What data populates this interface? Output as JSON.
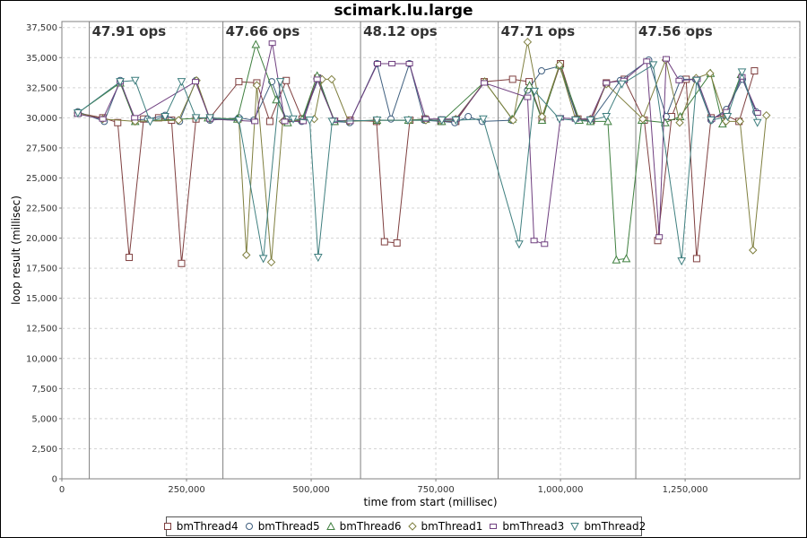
{
  "chart_data": {
    "type": "line",
    "title": "scimark.lu.large",
    "xlabel": "time from start (millisec)",
    "ylabel": "loop result (millisec)",
    "xlim": [
      0,
      1480000
    ],
    "ylim": [
      0,
      38000
    ],
    "xticks": [
      0,
      250000,
      500000,
      750000,
      1000000,
      1250000
    ],
    "xtick_labels": [
      "0",
      "250,000",
      "500,000",
      "750,000",
      "1,000,000",
      "1,250,000"
    ],
    "yticks": [
      0,
      2500,
      5000,
      7500,
      10000,
      12500,
      15000,
      17500,
      20000,
      22500,
      25000,
      27500,
      30000,
      32500,
      35000,
      37500
    ],
    "ytick_labels": [
      "0",
      "2,500",
      "5,000",
      "7,500",
      "10,000",
      "12,500",
      "15,000",
      "17,500",
      "20,000",
      "22,500",
      "25,000",
      "27,500",
      "30,000",
      "32,500",
      "35,000",
      "37,500"
    ],
    "grid": true,
    "legend_position": "bottom",
    "markers": [
      {
        "x": 55000,
        "label": "47.91 ops"
      },
      {
        "x": 323000,
        "label": "47.66 ops"
      },
      {
        "x": 599000,
        "label": "48.12 ops"
      },
      {
        "x": 875000,
        "label": "47.71 ops"
      },
      {
        "x": 1151000,
        "label": "47.56 ops"
      }
    ],
    "series": [
      {
        "name": "bmThread4",
        "color": "#7f3f3f",
        "marker": "square",
        "points": [
          [
            32000,
            30400
          ],
          [
            82000,
            30000
          ],
          [
            112000,
            29600
          ],
          [
            135000,
            18400
          ],
          [
            164000,
            29900
          ],
          [
            194000,
            30000
          ],
          [
            220000,
            29800
          ],
          [
            240000,
            17900
          ],
          [
            269000,
            29900
          ],
          [
            297000,
            30000
          ],
          [
            355000,
            33000
          ],
          [
            391000,
            32900
          ],
          [
            417000,
            29700
          ],
          [
            450000,
            33100
          ],
          [
            482000,
            29900
          ],
          [
            513000,
            33300
          ],
          [
            547000,
            29700
          ],
          [
            578000,
            29800
          ],
          [
            631000,
            29700
          ],
          [
            647000,
            19700
          ],
          [
            672000,
            19600
          ],
          [
            698000,
            29800
          ],
          [
            728000,
            29900
          ],
          [
            760000,
            29700
          ],
          [
            790000,
            29700
          ],
          [
            847000,
            33000
          ],
          [
            904000,
            33200
          ],
          [
            937000,
            33000
          ],
          [
            963000,
            29900
          ],
          [
            1000000,
            34500
          ],
          [
            1035000,
            29900
          ],
          [
            1062000,
            29800
          ],
          [
            1092000,
            32900
          ],
          [
            1128000,
            33200
          ],
          [
            1168000,
            29800
          ],
          [
            1195000,
            19800
          ],
          [
            1223000,
            30100
          ],
          [
            1252000,
            33200
          ],
          [
            1273000,
            18300
          ],
          [
            1302000,
            30000
          ],
          [
            1332000,
            30200
          ],
          [
            1358000,
            29700
          ],
          [
            1389000,
            33900
          ]
        ]
      },
      {
        "name": "bmThread5",
        "color": "#3f5f7f",
        "marker": "circle",
        "points": [
          [
            32000,
            30500
          ],
          [
            85000,
            29700
          ],
          [
            117000,
            33100
          ],
          [
            146000,
            29800
          ],
          [
            172000,
            29900
          ],
          [
            207000,
            30200
          ],
          [
            236000,
            29700
          ],
          [
            269000,
            33100
          ],
          [
            297000,
            29800
          ],
          [
            355000,
            30000
          ],
          [
            385000,
            29800
          ],
          [
            421000,
            33000
          ],
          [
            450000,
            29900
          ],
          [
            481000,
            29700
          ],
          [
            515000,
            33300
          ],
          [
            546000,
            29700
          ],
          [
            577000,
            29600
          ],
          [
            632000,
            34500
          ],
          [
            660000,
            29900
          ],
          [
            697000,
            34500
          ],
          [
            727000,
            29800
          ],
          [
            760000,
            29700
          ],
          [
            788000,
            29600
          ],
          [
            815000,
            30100
          ],
          [
            843000,
            29700
          ],
          [
            902000,
            29800
          ],
          [
            934000,
            32300
          ],
          [
            962000,
            33900
          ],
          [
            998000,
            34300
          ],
          [
            1035000,
            29800
          ],
          [
            1061000,
            29700
          ],
          [
            1120000,
            33100
          ],
          [
            1177000,
            34800
          ],
          [
            1212000,
            30100
          ],
          [
            1241000,
            33200
          ],
          [
            1271000,
            33200
          ],
          [
            1302000,
            29800
          ],
          [
            1333000,
            30700
          ],
          [
            1365000,
            33200
          ],
          [
            1392000,
            30500
          ]
        ]
      },
      {
        "name": "bmThread6",
        "color": "#3f7f3f",
        "marker": "triangle",
        "points": [
          [
            32000,
            30400
          ],
          [
            117000,
            32900
          ],
          [
            147000,
            29700
          ],
          [
            293000,
            30000
          ],
          [
            352000,
            29900
          ],
          [
            389000,
            36100
          ],
          [
            430000,
            31500
          ],
          [
            453000,
            29600
          ],
          [
            482000,
            29900
          ],
          [
            512000,
            33500
          ],
          [
            547000,
            29700
          ],
          [
            632000,
            29800
          ],
          [
            695000,
            29800
          ],
          [
            730000,
            29900
          ],
          [
            762000,
            29700
          ],
          [
            848000,
            33000
          ],
          [
            903000,
            29900
          ],
          [
            938000,
            32700
          ],
          [
            963000,
            29800
          ],
          [
            998000,
            34400
          ],
          [
            1038000,
            29800
          ],
          [
            1060000,
            29700
          ],
          [
            1095000,
            29700
          ],
          [
            1112000,
            18200
          ],
          [
            1132000,
            18300
          ],
          [
            1163000,
            29800
          ],
          [
            1210000,
            29600
          ],
          [
            1240000,
            30100
          ],
          [
            1301000,
            33700
          ],
          [
            1325000,
            29500
          ],
          [
            1362000,
            33600
          ]
        ]
      },
      {
        "name": "bmThread1",
        "color": "#7f7f3f",
        "marker": "diamond",
        "points": [
          [
            32000,
            30400
          ],
          [
            82000,
            29900
          ],
          [
            147000,
            29700
          ],
          [
            234000,
            29800
          ],
          [
            270000,
            33100
          ],
          [
            297000,
            29900
          ],
          [
            355000,
            29800
          ],
          [
            370000,
            18600
          ],
          [
            391000,
            32700
          ],
          [
            420000,
            18000
          ],
          [
            443000,
            29700
          ],
          [
            506000,
            29900
          ],
          [
            522000,
            33200
          ],
          [
            541000,
            33200
          ],
          [
            575000,
            29700
          ],
          [
            632000,
            29800
          ],
          [
            697000,
            29800
          ],
          [
            730000,
            29800
          ],
          [
            760000,
            29800
          ],
          [
            790000,
            29900
          ],
          [
            848000,
            33000
          ],
          [
            905000,
            29800
          ],
          [
            934000,
            36300
          ],
          [
            963000,
            30100
          ],
          [
            998000,
            34400
          ],
          [
            1030000,
            29900
          ],
          [
            1060000,
            29900
          ],
          [
            1092000,
            32800
          ],
          [
            1165000,
            29900
          ],
          [
            1211000,
            34800
          ],
          [
            1239000,
            29600
          ],
          [
            1272000,
            33300
          ],
          [
            1300000,
            33700
          ],
          [
            1332000,
            29700
          ],
          [
            1360000,
            29700
          ],
          [
            1386000,
            19000
          ],
          [
            1413000,
            30200
          ]
        ]
      },
      {
        "name": "bmThread3",
        "color": "#6f3f7f",
        "marker": "rect",
        "points": [
          [
            32000,
            30300
          ],
          [
            82000,
            29900
          ],
          [
            117000,
            33000
          ],
          [
            146000,
            30000
          ],
          [
            268000,
            33000
          ],
          [
            297000,
            29900
          ],
          [
            387000,
            29700
          ],
          [
            422000,
            36200
          ],
          [
            447000,
            29700
          ],
          [
            484000,
            29700
          ],
          [
            512000,
            33200
          ],
          [
            546000,
            29800
          ],
          [
            578000,
            29700
          ],
          [
            633000,
            34500
          ],
          [
            662000,
            34500
          ],
          [
            697000,
            34500
          ],
          [
            730000,
            29900
          ],
          [
            762000,
            29900
          ],
          [
            791000,
            29900
          ],
          [
            847000,
            32900
          ],
          [
            934000,
            31700
          ],
          [
            947000,
            19800
          ],
          [
            968000,
            19500
          ],
          [
            1000000,
            30000
          ],
          [
            1030000,
            29900
          ],
          [
            1060000,
            29900
          ],
          [
            1092000,
            32900
          ],
          [
            1127000,
            33100
          ],
          [
            1173000,
            34700
          ],
          [
            1198000,
            20100
          ],
          [
            1212000,
            34900
          ],
          [
            1238000,
            33100
          ],
          [
            1274000,
            33200
          ],
          [
            1303000,
            29900
          ],
          [
            1333000,
            30500
          ],
          [
            1364000,
            33400
          ],
          [
            1395000,
            30400
          ]
        ]
      },
      {
        "name": "bmThread2",
        "color": "#3f7f7f",
        "marker": "invtriangle",
        "points": [
          [
            32000,
            30400
          ],
          [
            117000,
            33000
          ],
          [
            147000,
            33100
          ],
          [
            177000,
            29700
          ],
          [
            207000,
            30100
          ],
          [
            240000,
            33000
          ],
          [
            269000,
            30000
          ],
          [
            297000,
            30000
          ],
          [
            355000,
            29800
          ],
          [
            404000,
            18300
          ],
          [
            438000,
            33000
          ],
          [
            464000,
            29900
          ],
          [
            497000,
            29800
          ],
          [
            514000,
            18400
          ],
          [
            542000,
            29700
          ],
          [
            632000,
            29800
          ],
          [
            694000,
            29800
          ],
          [
            762000,
            29800
          ],
          [
            790000,
            29800
          ],
          [
            845000,
            29900
          ],
          [
            917000,
            19500
          ],
          [
            948000,
            32200
          ],
          [
            998000,
            29900
          ],
          [
            1030000,
            29800
          ],
          [
            1060000,
            29800
          ],
          [
            1092000,
            30100
          ],
          [
            1123000,
            32800
          ],
          [
            1186000,
            34400
          ],
          [
            1243000,
            18100
          ],
          [
            1273000,
            33100
          ],
          [
            1302000,
            29800
          ],
          [
            1335000,
            30100
          ],
          [
            1364000,
            33800
          ],
          [
            1395000,
            29600
          ]
        ]
      }
    ]
  }
}
